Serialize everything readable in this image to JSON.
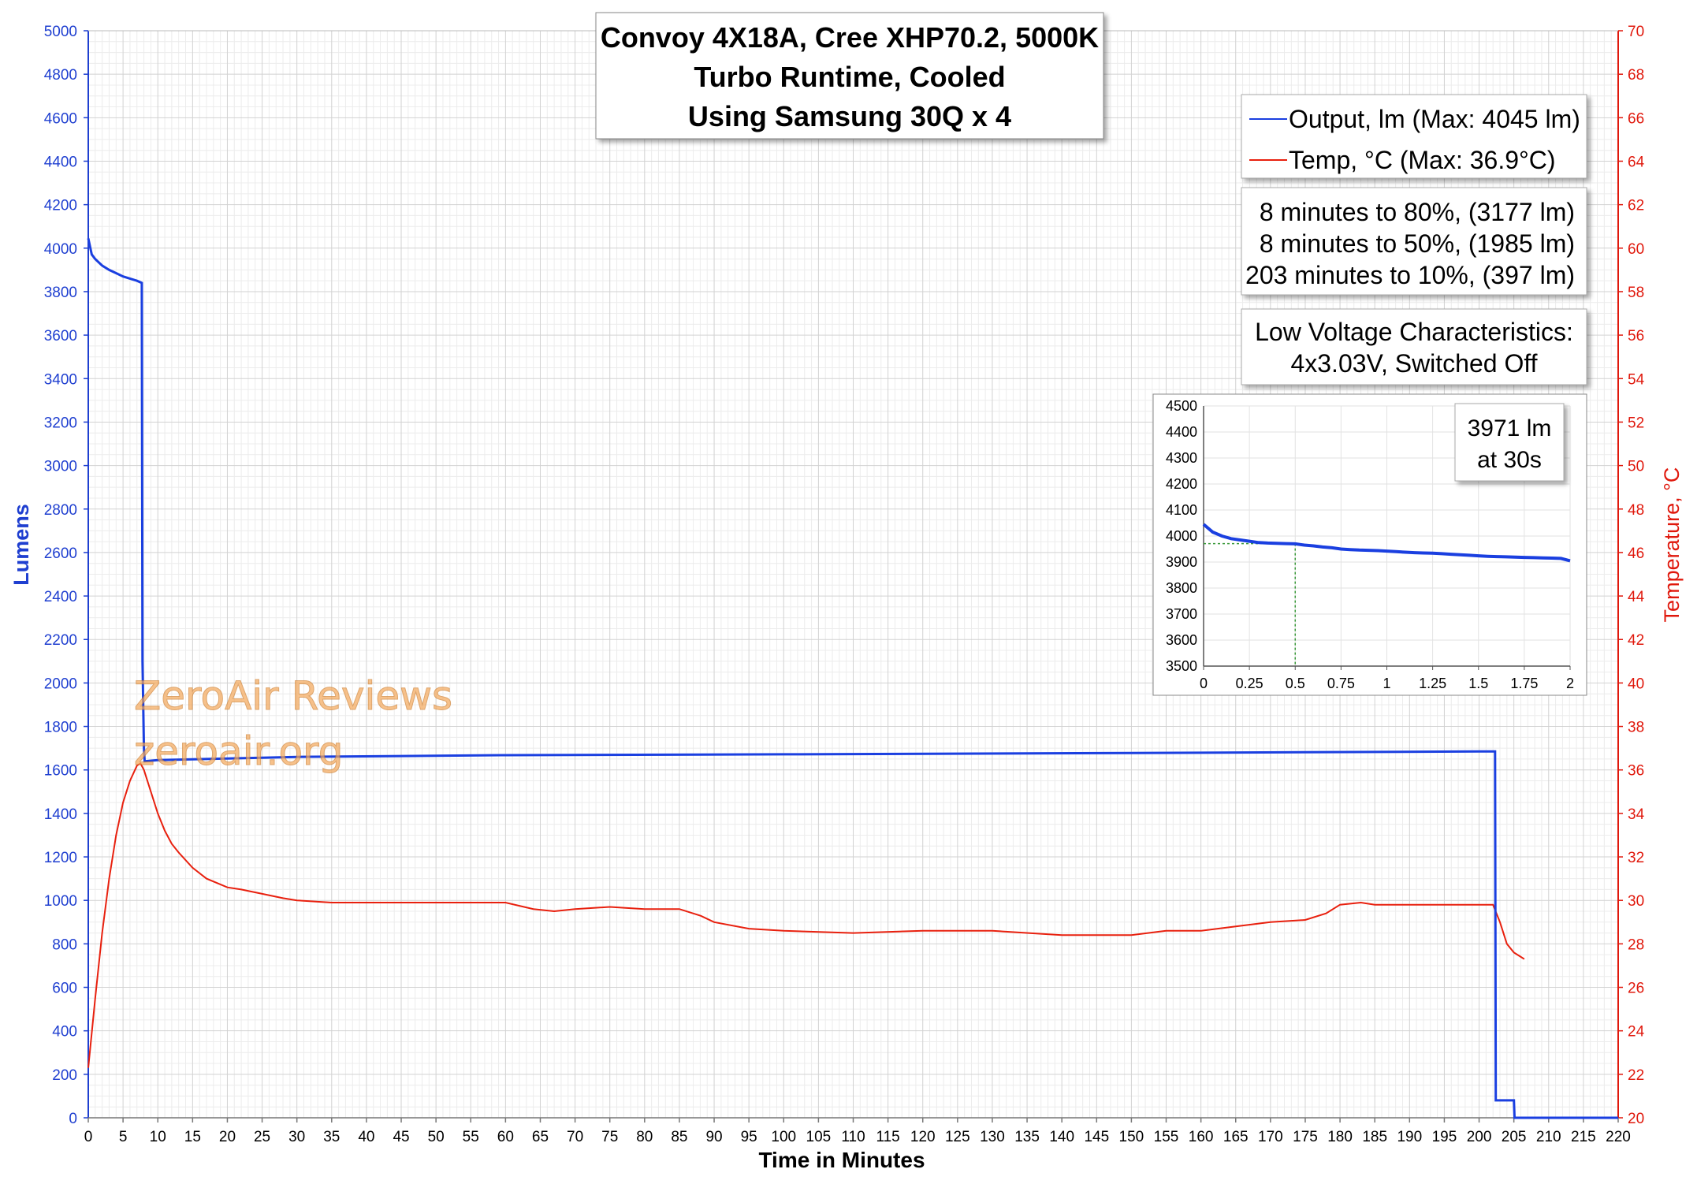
{
  "chart_data": {
    "type": "line",
    "title": [
      "Convoy 4X18A, Cree XHP70.2, 5000K",
      "Turbo Runtime, Cooled",
      "Using Samsung 30Q x 4"
    ],
    "xlabel": "Time in Minutes",
    "ylabel_left": "Lumens",
    "ylabel_right": "Temperature, °C",
    "xlim": [
      0,
      220
    ],
    "ylim_left": [
      0,
      5000
    ],
    "ylim_right": [
      20,
      70
    ],
    "grid": true,
    "colors": {
      "output": "#1a3fe0",
      "temp": "#e8200e",
      "left_axis": "#1f3fd0",
      "right_axis": "#e0180c"
    },
    "x_ticks": [
      "0",
      "5",
      "10",
      "15",
      "20",
      "25",
      "30",
      "35",
      "40",
      "45",
      "50",
      "55",
      "60",
      "65",
      "70",
      "75",
      "80",
      "85",
      "90",
      "95",
      "100",
      "105",
      "110",
      "115",
      "120",
      "125",
      "130",
      "135",
      "140",
      "145",
      "150",
      "155",
      "160",
      "165",
      "170",
      "175",
      "180",
      "185",
      "190",
      "195",
      "200",
      "205",
      "210",
      "215",
      "220"
    ],
    "y_left_ticks": [
      "0",
      "200",
      "400",
      "600",
      "800",
      "1000",
      "1200",
      "1400",
      "1600",
      "1800",
      "2000",
      "2200",
      "2400",
      "2600",
      "2800",
      "3000",
      "3200",
      "3400",
      "3600",
      "3800",
      "4000",
      "4200",
      "4400",
      "4600",
      "4800",
      "5000"
    ],
    "y_right_ticks": [
      "20",
      "22",
      "24",
      "26",
      "28",
      "30",
      "32",
      "34",
      "36",
      "38",
      "40",
      "42",
      "44",
      "46",
      "48",
      "50",
      "52",
      "54",
      "56",
      "58",
      "60",
      "62",
      "64",
      "66",
      "68",
      "70"
    ],
    "series": [
      {
        "name": "Output, lm (Max: 4045 lm)",
        "axis": "left",
        "x": [
          0,
          0.5,
          1,
          2,
          3,
          4,
          5,
          6,
          7,
          7.7,
          7.8,
          8.0,
          8.1,
          10,
          30,
          60,
          100,
          150,
          200,
          202.3,
          202.4,
          205,
          205.1,
          220
        ],
        "y": [
          4045,
          3971,
          3950,
          3920,
          3900,
          3885,
          3870,
          3860,
          3850,
          3840,
          2100,
          1700,
          1640,
          1645,
          1660,
          1668,
          1672,
          1678,
          1685,
          1685,
          80,
          80,
          0,
          0
        ]
      },
      {
        "name": "Temp, °C (Max: 36.9°C)",
        "axis": "right",
        "x": [
          0,
          1,
          2,
          3,
          4,
          5,
          6,
          7,
          7.5,
          8,
          9,
          10,
          11,
          12,
          13,
          15,
          17,
          20,
          22,
          25,
          28,
          30,
          35,
          40,
          50,
          60,
          64,
          67,
          70,
          75,
          80,
          85,
          88,
          90,
          95,
          100,
          110,
          120,
          130,
          140,
          150,
          155,
          160,
          165,
          170,
          175,
          178,
          180,
          183,
          185,
          190,
          195,
          200,
          201,
          202,
          203,
          204,
          205,
          206,
          206.5
        ],
        "y": [
          22.3,
          25.5,
          28.5,
          31,
          33,
          34.5,
          35.5,
          36.2,
          36.3,
          36.0,
          35.0,
          34.0,
          33.2,
          32.6,
          32.2,
          31.5,
          31.0,
          30.6,
          30.5,
          30.3,
          30.1,
          30.0,
          29.9,
          29.9,
          29.9,
          29.9,
          29.6,
          29.5,
          29.6,
          29.7,
          29.6,
          29.6,
          29.3,
          29.0,
          28.7,
          28.6,
          28.5,
          28.6,
          28.6,
          28.4,
          28.4,
          28.6,
          28.6,
          28.8,
          29.0,
          29.1,
          29.4,
          29.8,
          29.9,
          29.8,
          29.8,
          29.8,
          29.8,
          29.8,
          29.8,
          29.0,
          28.0,
          27.6,
          27.4,
          27.3
        ]
      }
    ],
    "inset": {
      "type": "line",
      "xlim": [
        0,
        2
      ],
      "ylim": [
        3500,
        4500
      ],
      "x_ticks": [
        "0",
        "0.25",
        "0.5",
        "0.75",
        "1",
        "1.25",
        "1.5",
        "1.75",
        "2"
      ],
      "y_ticks": [
        "3500",
        "3600",
        "3700",
        "3800",
        "3900",
        "4000",
        "4100",
        "4200",
        "4300",
        "4400",
        "4500"
      ],
      "x": [
        0,
        0.05,
        0.1,
        0.15,
        0.2,
        0.25,
        0.3,
        0.35,
        0.4,
        0.45,
        0.5,
        0.55,
        0.6,
        0.65,
        0.7,
        0.75,
        0.8,
        0.85,
        0.9,
        0.95,
        1.0,
        1.05,
        1.1,
        1.15,
        1.2,
        1.25,
        1.3,
        1.35,
        1.4,
        1.45,
        1.5,
        1.55,
        1.6,
        1.65,
        1.7,
        1.75,
        1.8,
        1.85,
        1.9,
        1.95,
        2.0
      ],
      "y": [
        4045,
        4015,
        4000,
        3990,
        3985,
        3980,
        3975,
        3973,
        3972,
        3971,
        3970,
        3965,
        3962,
        3958,
        3955,
        3950,
        3948,
        3946,
        3945,
        3944,
        3942,
        3940,
        3938,
        3936,
        3935,
        3934,
        3932,
        3930,
        3928,
        3926,
        3924,
        3922,
        3921,
        3920,
        3919,
        3918,
        3917,
        3916,
        3915,
        3914,
        3905
      ],
      "marker": {
        "x": 0.5,
        "y": 3971
      },
      "annotation": [
        "3971 lm",
        "at 30s"
      ]
    },
    "annotations": [
      [
        "8 minutes to 80%, (3177 lm)",
        "8 minutes to 50%, (1985 lm)",
        "203 minutes to 10%, (397 lm)"
      ],
      [
        "Low Voltage Characteristics:",
        "4x3.03V, Switched Off"
      ]
    ],
    "legend_position": "top-right",
    "watermark": [
      "ZeroAir Reviews",
      "zeroair.org"
    ]
  }
}
